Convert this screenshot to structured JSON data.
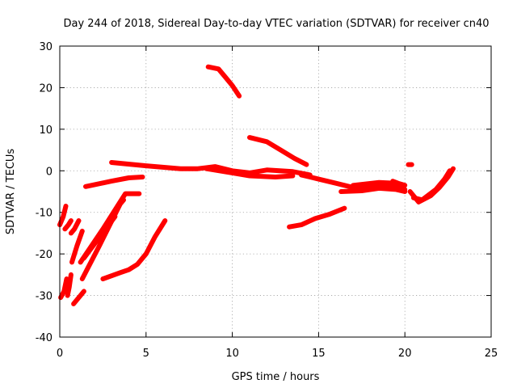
{
  "chart_data": {
    "type": "scatter",
    "title": "Day 244 of 2018, Sidereal Day-to-day VTEC variation (SDTVAR) for receiver cn40",
    "xlabel": "GPS time / hours",
    "ylabel": "SDTVAR / TECUs",
    "xlim": [
      0,
      25
    ],
    "ylim": [
      -40,
      30
    ],
    "xticks": [
      0,
      5,
      10,
      15,
      20,
      25
    ],
    "yticks": [
      -40,
      -30,
      -20,
      -10,
      0,
      10,
      20,
      30
    ],
    "grid": true,
    "marker_color": "#ff0000",
    "series": [
      {
        "name": "s1",
        "points": [
          [
            0.0,
            -13
          ],
          [
            0.2,
            -11
          ],
          [
            0.35,
            -8.5
          ]
        ]
      },
      {
        "name": "s2",
        "points": [
          [
            0.05,
            -30.5
          ],
          [
            0.25,
            -29
          ],
          [
            0.4,
            -26
          ]
        ]
      },
      {
        "name": "s3",
        "points": [
          [
            0.45,
            -30
          ],
          [
            0.55,
            -28
          ],
          [
            0.65,
            -25
          ]
        ]
      },
      {
        "name": "s4",
        "points": [
          [
            0.3,
            -14
          ],
          [
            0.5,
            -13
          ],
          [
            0.65,
            -12
          ]
        ]
      },
      {
        "name": "s5",
        "points": [
          [
            0.65,
            -15
          ],
          [
            0.85,
            -14
          ],
          [
            1.1,
            -12
          ]
        ]
      },
      {
        "name": "s6",
        "points": [
          [
            0.7,
            -22
          ],
          [
            1.0,
            -18
          ],
          [
            1.3,
            -14.5
          ]
        ]
      },
      {
        "name": "s7",
        "points": [
          [
            0.8,
            -32
          ],
          [
            1.2,
            -30
          ],
          [
            1.4,
            -29
          ]
        ]
      },
      {
        "name": "s8",
        "points": [
          [
            1.3,
            -26
          ],
          [
            2.3,
            -18
          ],
          [
            3.5,
            -8
          ],
          [
            3.7,
            -7
          ]
        ]
      },
      {
        "name": "s9",
        "points": [
          [
            1.2,
            -22
          ],
          [
            2.5,
            -14
          ],
          [
            3.8,
            -5.5
          ],
          [
            4.6,
            -5.5
          ]
        ]
      },
      {
        "name": "s10",
        "points": [
          [
            1.4,
            -21
          ],
          [
            2.3,
            -16
          ],
          [
            3.2,
            -11
          ]
        ]
      },
      {
        "name": "s11",
        "points": [
          [
            2.5,
            -26
          ],
          [
            3.5,
            -24.5
          ],
          [
            4.0,
            -23.8
          ],
          [
            4.5,
            -22.5
          ],
          [
            5.0,
            -20
          ],
          [
            5.5,
            -16
          ],
          [
            6.1,
            -12
          ]
        ]
      },
      {
        "name": "s12",
        "points": [
          [
            1.5,
            -3.8
          ],
          [
            3.0,
            -2.5
          ],
          [
            4.0,
            -1.7
          ],
          [
            4.8,
            -1.5
          ]
        ]
      },
      {
        "name": "s13",
        "points": [
          [
            3.0,
            2
          ],
          [
            5.0,
            1.2
          ],
          [
            7.0,
            0.5
          ],
          [
            8.0,
            0.5
          ],
          [
            9.0,
            1.0
          ],
          [
            10.0,
            0
          ],
          [
            11.0,
            -0.5
          ],
          [
            12.0,
            0.2
          ],
          [
            13.5,
            -0.2
          ],
          [
            14.5,
            -1
          ]
        ]
      },
      {
        "name": "s14",
        "points": [
          [
            8.5,
            0.5
          ],
          [
            10.0,
            -0.5
          ],
          [
            11.0,
            -1.2
          ],
          [
            12.5,
            -1.5
          ],
          [
            13.5,
            -1.2
          ]
        ]
      },
      {
        "name": "s15",
        "points": [
          [
            14.0,
            -1
          ],
          [
            15.0,
            -2
          ],
          [
            16.0,
            -3
          ],
          [
            17.0,
            -4
          ],
          [
            18.0,
            -4
          ],
          [
            19.0,
            -3.5
          ],
          [
            20.0,
            -4.5
          ]
        ]
      },
      {
        "name": "s16",
        "points": [
          [
            16.3,
            -5
          ],
          [
            17.5,
            -4.8
          ],
          [
            18.5,
            -4.2
          ],
          [
            19.5,
            -4.5
          ],
          [
            20.0,
            -5
          ]
        ]
      },
      {
        "name": "s17",
        "points": [
          [
            17.0,
            -3.5
          ],
          [
            18.5,
            -2.8
          ],
          [
            19.5,
            -3
          ]
        ]
      },
      {
        "name": "s18",
        "points": [
          [
            19.3,
            -2.5
          ],
          [
            19.6,
            -3
          ],
          [
            20.0,
            -3.5
          ]
        ]
      },
      {
        "name": "s19",
        "points": [
          [
            20.3,
            -5
          ],
          [
            20.8,
            -7.5
          ],
          [
            21.5,
            -6
          ],
          [
            22.0,
            -4
          ],
          [
            22.5,
            -1.5
          ],
          [
            22.8,
            0.5
          ]
        ]
      },
      {
        "name": "s20",
        "points": [
          [
            20.5,
            -6.5
          ],
          [
            21.0,
            -7
          ],
          [
            21.8,
            -4.5
          ],
          [
            22.3,
            -2
          ],
          [
            22.6,
            0
          ]
        ]
      },
      {
        "name": "s21",
        "points": [
          [
            20.2,
            1.5
          ],
          [
            20.4,
            1.5
          ]
        ]
      },
      {
        "name": "s22",
        "points": [
          [
            8.6,
            25
          ],
          [
            9.2,
            24.5
          ],
          [
            9.6,
            22.5
          ],
          [
            10.0,
            20.5
          ],
          [
            10.4,
            18
          ]
        ]
      },
      {
        "name": "s23",
        "points": [
          [
            11.0,
            8
          ],
          [
            12.0,
            7
          ],
          [
            12.8,
            5
          ],
          [
            13.6,
            3
          ],
          [
            14.3,
            1.5
          ]
        ]
      },
      {
        "name": "s24",
        "points": [
          [
            13.3,
            -13.5
          ],
          [
            14.0,
            -13
          ],
          [
            14.8,
            -11.5
          ],
          [
            15.6,
            -10.5
          ],
          [
            16.5,
            -9
          ]
        ]
      }
    ]
  }
}
